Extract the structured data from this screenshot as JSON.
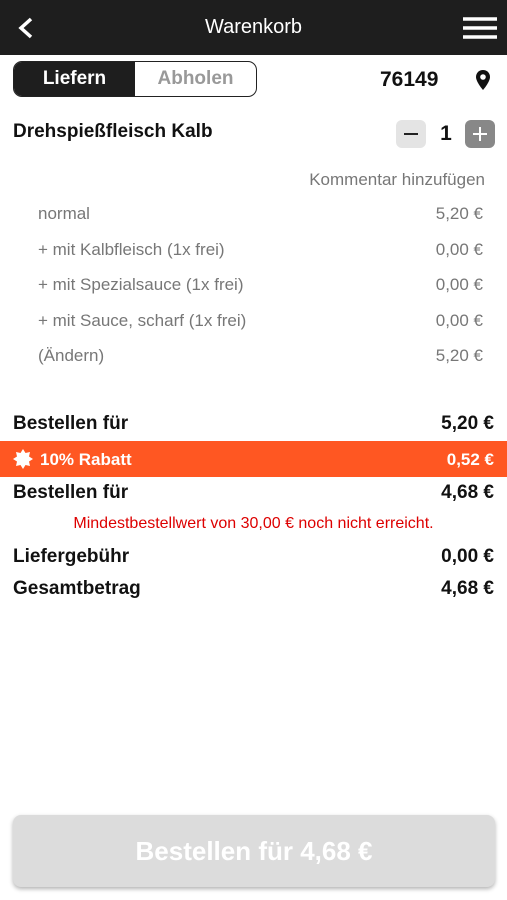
{
  "header": {
    "title": "Warenkorb"
  },
  "delivery": {
    "tabs": [
      "Liefern",
      "Abholen"
    ],
    "postcode": "76149"
  },
  "item": {
    "name": "Drehspießfleisch Kalb",
    "quantity": "1",
    "comment_link": "Kommentar hinzufügen",
    "options": [
      [
        "normal",
        "5,20 €"
      ],
      [
        "+ mit Kalbfleisch (1x frei)",
        "0,00 €"
      ],
      [
        "+ mit Spezialsauce (1x frei)",
        "0,00 €"
      ],
      [
        "+ mit Sauce, scharf (1x frei)",
        "0,00 €"
      ],
      [
        "(Ändern)",
        "5,20 €"
      ]
    ]
  },
  "summary": {
    "subtotal": [
      "Bestellen für",
      "5,20 €"
    ],
    "discount": [
      "10% Rabatt",
      "0,52 €"
    ],
    "discounted": [
      "Bestellen für",
      "4,68 €"
    ],
    "warning": "Mindestbestellwert von 30,00 € noch nicht erreicht.",
    "delivery_fee": [
      "Liefergebühr",
      "0,00 €"
    ],
    "total": [
      "Gesamtbetrag",
      "4,68 €"
    ]
  },
  "order_button": "Bestellen für 4,68 €"
}
